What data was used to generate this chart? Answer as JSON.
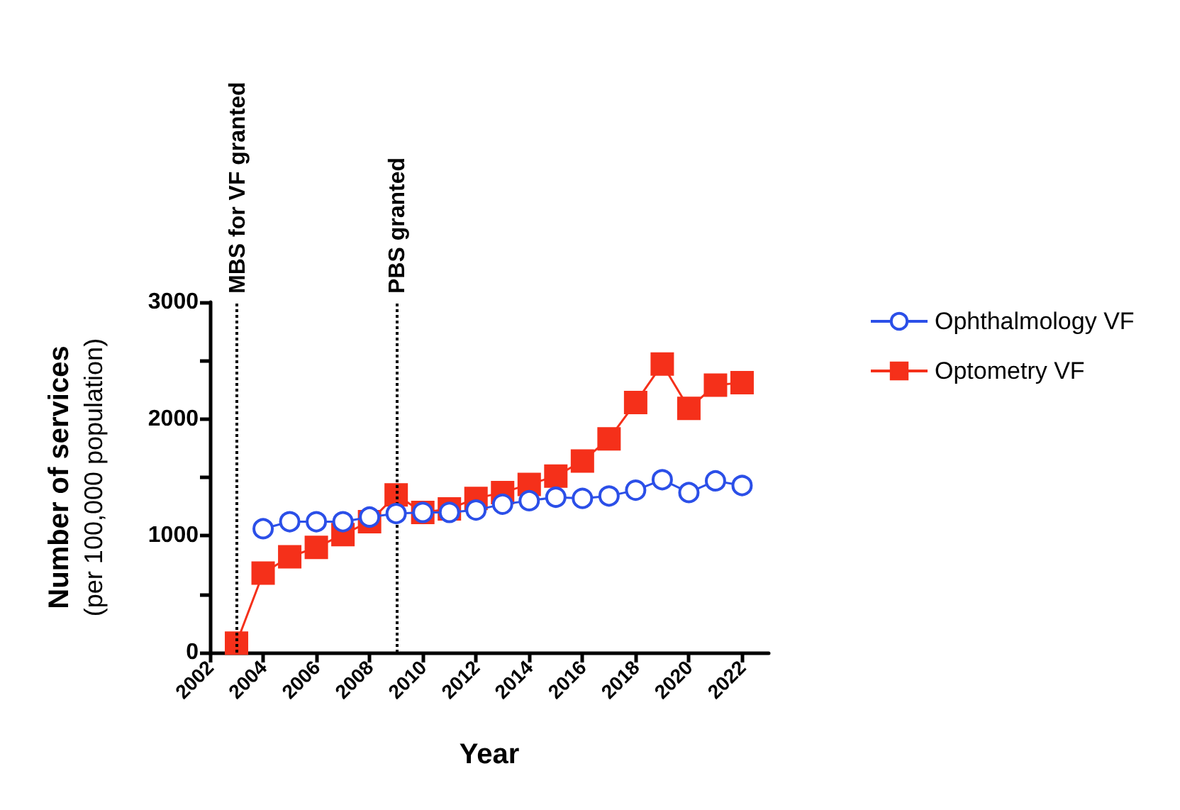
{
  "chart_data": {
    "type": "line",
    "xlabel": "Year",
    "ylabel": "Number of services\n(per 100,000 population)",
    "xlim": [
      2002,
      2023
    ],
    "xticks": [
      2002,
      2004,
      2006,
      2008,
      2010,
      2012,
      2014,
      2016,
      2018,
      2020,
      2022
    ],
    "ylim": [
      0,
      3000
    ],
    "yticks": [
      0,
      {
        "value": 500,
        "label": null
      },
      1000,
      {
        "value": 1500,
        "label": null
      },
      2000,
      {
        "value": 2500,
        "label": null
      },
      3000
    ],
    "grid": false,
    "legend": "right",
    "series": [
      {
        "name": "Ophthalmology VF",
        "color": "#2b4fe8",
        "marker": "circle",
        "x": [
          2004,
          2005,
          2006,
          2007,
          2008,
          2009,
          2010,
          2011,
          2012,
          2013,
          2014,
          2015,
          2016,
          2017,
          2018,
          2019,
          2020,
          2021,
          2022
        ],
        "values": [
          1060,
          1120,
          1120,
          1120,
          1160,
          1190,
          1200,
          1200,
          1220,
          1270,
          1300,
          1330,
          1320,
          1340,
          1390,
          1480,
          1370,
          1470,
          1430
        ]
      },
      {
        "name": "Optometry VF",
        "color": "#f5301a",
        "marker": "square",
        "x": [
          2003,
          2004,
          2005,
          2006,
          2007,
          2008,
          2009,
          2010,
          2011,
          2012,
          2013,
          2014,
          2015,
          2016,
          2017,
          2018,
          2019,
          2020,
          2021,
          2022
        ],
        "values": [
          80,
          680,
          820,
          900,
          1010,
          1120,
          1350,
          1200,
          1230,
          1320,
          1370,
          1440,
          1510,
          1640,
          1830,
          2140,
          2470,
          2090,
          2290,
          2310
        ]
      }
    ],
    "ref_lines": [
      {
        "axis": "x",
        "value": 2003,
        "label": "MBS for VF granted",
        "color": "#000000",
        "line_style": "dotted"
      },
      {
        "axis": "x",
        "value": 2009,
        "label": "PBS granted",
        "color": "#000000",
        "line_style": "dotted"
      }
    ]
  }
}
